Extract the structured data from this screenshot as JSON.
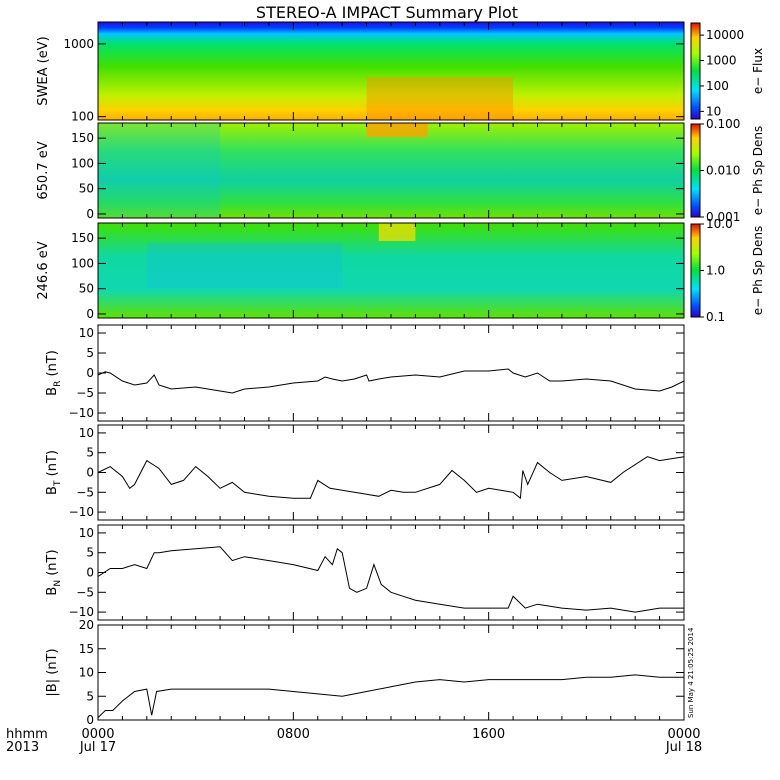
{
  "title": "STEREO-A IMPACT Summary Plot",
  "timestamp": "Sun May  4 21:05:25 2014",
  "x_axis": {
    "row_label_1": "hhmm",
    "row_label_2": "2013",
    "ticks": [
      {
        "hour": 0,
        "time": "0000",
        "date": "Jul 17"
      },
      {
        "hour": 8,
        "time": "0800",
        "date": ""
      },
      {
        "hour": 16,
        "time": "1600",
        "date": ""
      },
      {
        "hour": 24,
        "time": "0000",
        "date": "Jul 18"
      }
    ],
    "range_hours": [
      0,
      24
    ]
  },
  "chart_data": [
    {
      "type": "heatmap",
      "ylabel": "SWEA (eV)",
      "yscale": "log",
      "ylim": [
        90,
        2000
      ],
      "yticks": [
        {
          "v": 100,
          "label": "100"
        },
        {
          "v": 1000,
          "label": "1000"
        }
      ],
      "colorbar": {
        "scale": "log",
        "range": [
          5,
          30000
        ],
        "label": "e− Flux",
        "ticks": [
          {
            "v": 10000,
            "label": "10000"
          },
          {
            "v": 1000,
            "label": "1000"
          },
          {
            "v": 100,
            "label": "100"
          },
          {
            "v": 10,
            "label": "10"
          }
        ]
      }
    },
    {
      "type": "heatmap",
      "ylabel": "650.7 eV",
      "yscale": "linear",
      "ylim": [
        -8,
        180
      ],
      "yticks": [
        {
          "v": 0,
          "label": "0"
        },
        {
          "v": 50,
          "label": "50"
        },
        {
          "v": 100,
          "label": "100"
        },
        {
          "v": 150,
          "label": "150"
        }
      ],
      "colorbar": {
        "scale": "log",
        "range": [
          0.001,
          0.1
        ],
        "label": "e− Ph Sp Dens",
        "ticks": [
          {
            "v": 0.1,
            "label": "0.100"
          },
          {
            "v": 0.01,
            "label": "0.010"
          },
          {
            "v": 0.001,
            "label": "0.001"
          }
        ]
      }
    },
    {
      "type": "heatmap",
      "ylabel": "246.6 eV",
      "yscale": "linear",
      "ylim": [
        -8,
        180
      ],
      "yticks": [
        {
          "v": 0,
          "label": "0"
        },
        {
          "v": 50,
          "label": "50"
        },
        {
          "v": 100,
          "label": "100"
        },
        {
          "v": 150,
          "label": "150"
        }
      ],
      "colorbar": {
        "scale": "log",
        "range": [
          0.1,
          10
        ],
        "label": "e− Ph Sp Dens",
        "ticks": [
          {
            "v": 10,
            "label": "10.0"
          },
          {
            "v": 1,
            "label": "1.0"
          },
          {
            "v": 0.1,
            "label": "0.1"
          }
        ]
      }
    },
    {
      "type": "line",
      "ylabel": "B",
      "ylabel_sub": "R",
      "ylabel_unit": "(nT)",
      "ylim": [
        -12,
        12
      ],
      "yticks": [
        {
          "v": -10,
          "label": "−10"
        },
        {
          "v": -5,
          "label": "−5"
        },
        {
          "v": 0,
          "label": "0"
        },
        {
          "v": 5,
          "label": "5"
        },
        {
          "v": 10,
          "label": "10"
        }
      ],
      "x": [
        0,
        0.3,
        0.5,
        1,
        1.5,
        2,
        2.3,
        2.5,
        3,
        4,
        5,
        5.5,
        6,
        7,
        8,
        9,
        9.3,
        9.6,
        10,
        10.5,
        11,
        11.1,
        11.5,
        12,
        13,
        14,
        15,
        16,
        16.8,
        17,
        17.5,
        18,
        18.5,
        19,
        20,
        21,
        22,
        23,
        23.5,
        24
      ],
      "y": [
        -0.5,
        0.3,
        0,
        -2,
        -3,
        -2.5,
        -0.5,
        -3,
        -4,
        -3.5,
        -4.5,
        -5,
        -4,
        -3.5,
        -2.5,
        -2,
        -1,
        -1.5,
        -2,
        -1.5,
        -0.5,
        -2,
        -1.5,
        -1,
        -0.5,
        -1,
        0.5,
        0.5,
        1,
        0,
        -1,
        0,
        -2,
        -2,
        -1.5,
        -2,
        -4,
        -4.5,
        -3.5,
        -2
      ]
    },
    {
      "type": "line",
      "ylabel": "B",
      "ylabel_sub": "T",
      "ylabel_unit": "(nT)",
      "ylim": [
        -12,
        12
      ],
      "yticks": [
        {
          "v": -10,
          "label": "−10"
        },
        {
          "v": -5,
          "label": "−5"
        },
        {
          "v": 0,
          "label": "0"
        },
        {
          "v": 5,
          "label": "5"
        },
        {
          "v": 10,
          "label": "10"
        }
      ],
      "x": [
        0,
        0.5,
        1,
        1.3,
        1.5,
        2,
        2.5,
        3,
        3.5,
        4,
        4.5,
        5,
        5.5,
        6,
        7,
        8,
        8.7,
        9,
        9.5,
        10,
        11,
        11.5,
        12,
        12.5,
        13,
        14,
        14.5,
        15,
        15.5,
        16,
        17,
        17.3,
        17.4,
        17.6,
        18,
        18.5,
        19,
        20,
        21,
        21.5,
        22,
        22.5,
        23,
        24
      ],
      "y": [
        0,
        1.5,
        -1,
        -4,
        -3,
        3,
        1,
        -3,
        -2,
        1.5,
        -1,
        -4,
        -2.5,
        -5,
        -6,
        -6.5,
        -6.5,
        -2,
        -4,
        -4.5,
        -5.5,
        -6,
        -4.5,
        -5,
        -5,
        -3,
        0.5,
        -2,
        -5,
        -4,
        -5,
        -6.5,
        0.5,
        -3,
        2.5,
        0,
        -2,
        -1,
        -2.5,
        0,
        2,
        4,
        3,
        4
      ]
    },
    {
      "type": "line",
      "ylabel": "B",
      "ylabel_sub": "N",
      "ylabel_unit": "(nT)",
      "ylim": [
        -12,
        12
      ],
      "yticks": [
        {
          "v": -10,
          "label": "−10"
        },
        {
          "v": -5,
          "label": "−5"
        },
        {
          "v": 0,
          "label": "0"
        },
        {
          "v": 5,
          "label": "5"
        },
        {
          "v": 10,
          "label": "10"
        }
      ],
      "x": [
        0,
        0.5,
        1,
        1.5,
        2,
        2.3,
        2.5,
        3,
        4,
        5,
        5.5,
        6,
        7,
        8,
        9,
        9.3,
        9.6,
        9.8,
        10,
        10.3,
        10.6,
        11,
        11.3,
        11.6,
        12,
        12.5,
        13,
        14,
        15,
        16,
        16.8,
        17,
        17.5,
        18,
        19,
        20,
        21,
        22,
        23,
        24
      ],
      "y": [
        -1,
        1,
        1,
        2,
        1,
        5,
        5,
        5.5,
        6,
        6.5,
        3,
        4,
        3,
        2,
        0.5,
        4,
        2,
        6,
        5,
        -4,
        -5,
        -4,
        2,
        -3,
        -5,
        -6,
        -7,
        -8,
        -9,
        -9,
        -9,
        -6,
        -9,
        -8,
        -9,
        -9.5,
        -9,
        -10,
        -9,
        -9
      ]
    },
    {
      "type": "line",
      "ylabel": "|B|",
      "ylabel_sub": "",
      "ylabel_unit": "(nT)",
      "ylim": [
        0,
        20
      ],
      "yticks": [
        {
          "v": 0,
          "label": "0"
        },
        {
          "v": 5,
          "label": "5"
        },
        {
          "v": 10,
          "label": "10"
        },
        {
          "v": 15,
          "label": "15"
        },
        {
          "v": 20,
          "label": "20"
        }
      ],
      "x": [
        0,
        0.3,
        0.6,
        1,
        1.5,
        2,
        2.2,
        2.4,
        3,
        4,
        5,
        6,
        7,
        8,
        9,
        10,
        10.5,
        11,
        12,
        13,
        14,
        15,
        16,
        17,
        18,
        19,
        20,
        21,
        22,
        23,
        24
      ],
      "y": [
        0.5,
        2,
        2,
        4,
        6,
        6.5,
        1,
        6,
        6.5,
        6.5,
        6.5,
        6.5,
        6.5,
        6,
        5.5,
        5,
        5.5,
        6,
        7,
        8,
        8.5,
        8,
        8.5,
        8.5,
        8.5,
        8.5,
        9,
        9,
        9.5,
        9,
        9
      ]
    }
  ]
}
